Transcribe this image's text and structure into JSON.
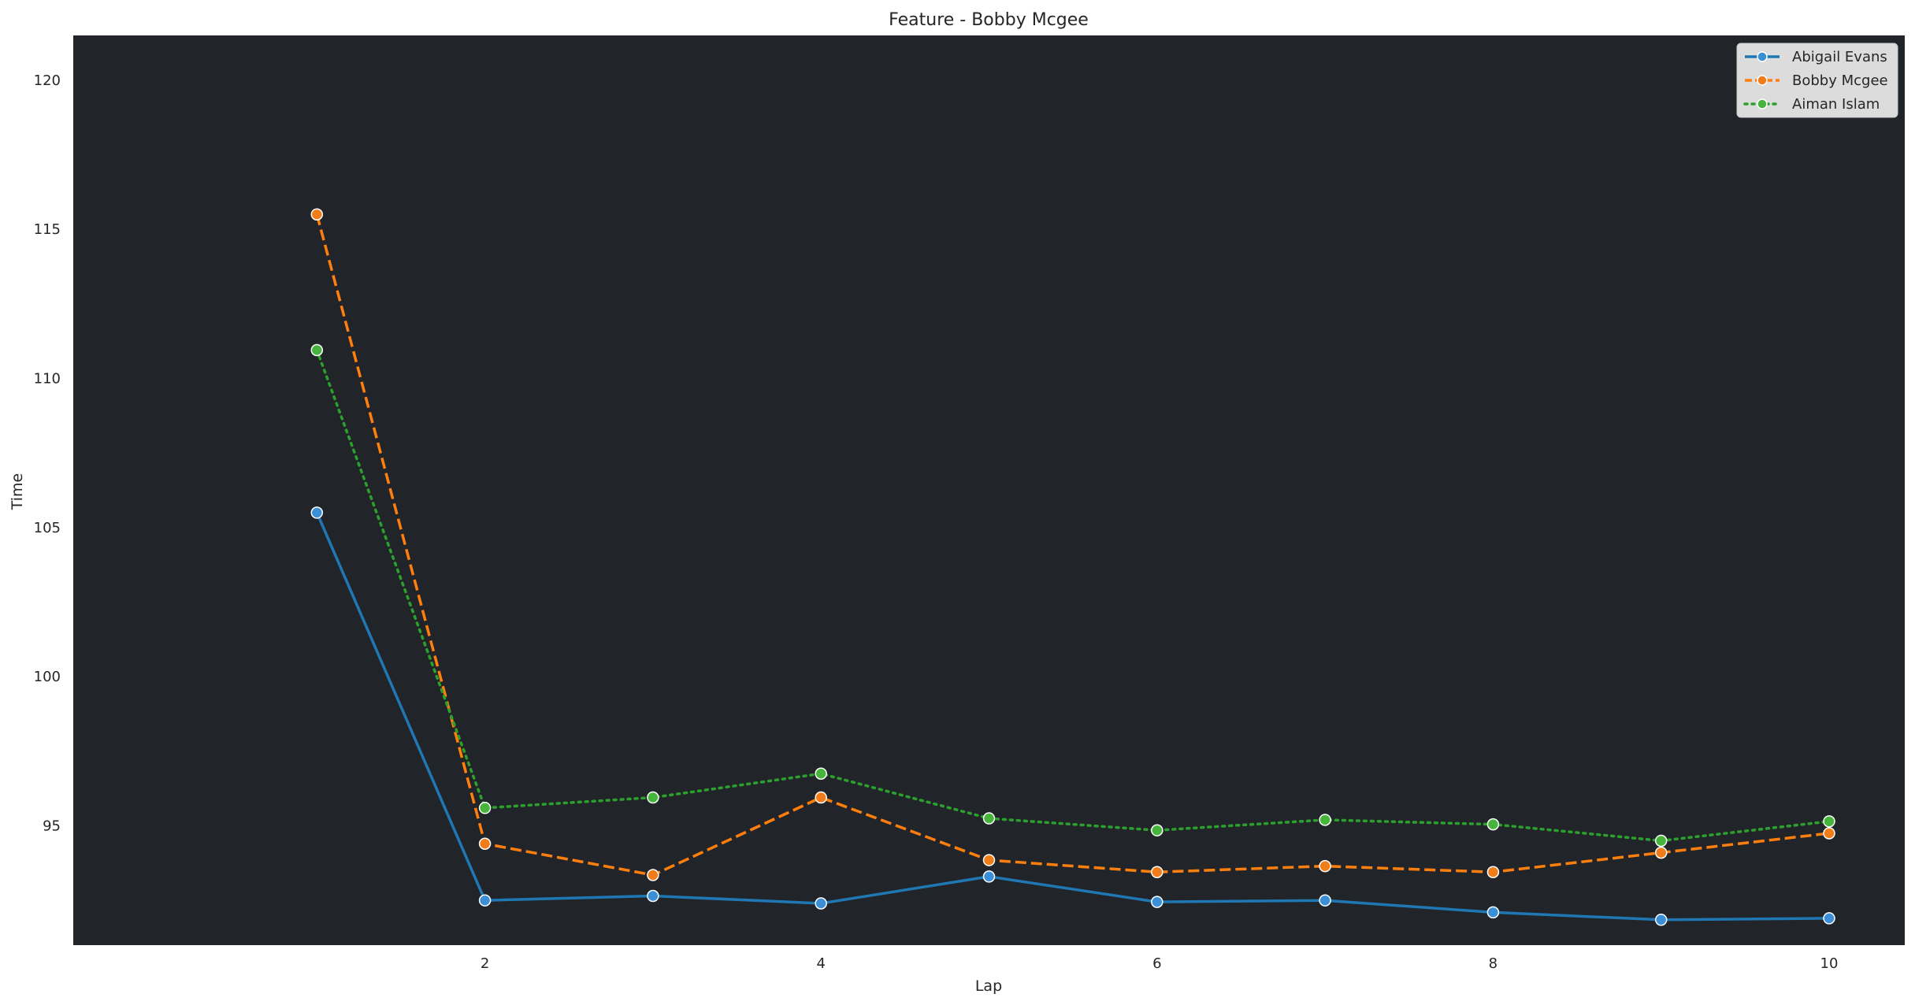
{
  "chart_data": {
    "type": "line",
    "title": "Feature - Bobby Mcgee",
    "xlabel": "Lap",
    "ylabel": "Time",
    "x": [
      1,
      2,
      3,
      4,
      5,
      6,
      7,
      8,
      9,
      10
    ],
    "xticks": [
      2,
      4,
      6,
      8,
      10
    ],
    "yticks": [
      95,
      100,
      105,
      110,
      115,
      120
    ],
    "xlim": [
      -0.45,
      10.45
    ],
    "ylim": [
      91.0,
      121.5
    ],
    "grid": false,
    "legend_position": "top-right",
    "plot_background": "#212429",
    "series": [
      {
        "name": "Abigail Evans",
        "color": "#1f77b4",
        "marker_fill": "#3b8fd6",
        "linestyle": "solid",
        "values": [
          105.5,
          92.5,
          92.65,
          92.4,
          93.3,
          92.45,
          92.5,
          92.1,
          91.85,
          91.9
        ]
      },
      {
        "name": "Bobby Mcgee",
        "color": "#ff7f0e",
        "marker_fill": "#f07d1a",
        "linestyle": "dashed",
        "values": [
          115.5,
          94.4,
          93.35,
          95.95,
          93.85,
          93.45,
          93.65,
          93.45,
          94.1,
          94.75
        ]
      },
      {
        "name": "Aiman Islam",
        "color": "#2ca02c",
        "marker_fill": "#47b43c",
        "linestyle": "dotted",
        "values": [
          110.95,
          95.6,
          95.95,
          96.75,
          95.25,
          94.85,
          95.2,
          95.05,
          94.5,
          95.15
        ]
      }
    ]
  }
}
